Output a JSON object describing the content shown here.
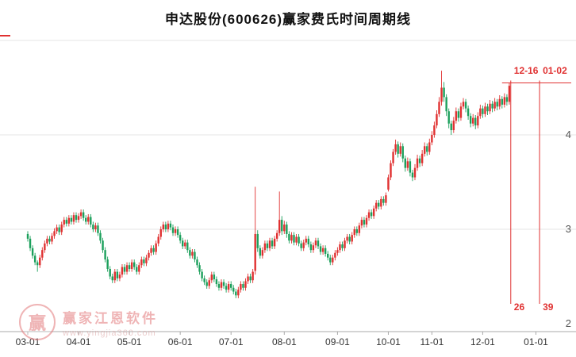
{
  "title": "申达股份(600626)赢家费氏时间周期线",
  "watermark": {
    "logo_char": "赢",
    "brand": "赢家江恩软件",
    "url": "www.yingjia360.com"
  },
  "colors": {
    "up": "#e03131",
    "down": "#1ca05c",
    "marker": "#e03131",
    "grid": "#e6e6e6",
    "axis": "#aaaaaa",
    "x_tick_text": "#333333",
    "y_tick_text": "#555555"
  },
  "x_axis": {
    "ticks": [
      {
        "label": "03-01",
        "i": 0
      },
      {
        "label": "04-01",
        "i": 21
      },
      {
        "label": "05-01",
        "i": 42
      },
      {
        "label": "06-01",
        "i": 63
      },
      {
        "label": "07-01",
        "i": 84
      },
      {
        "label": "08-01",
        "i": 106
      },
      {
        "label": "09-01",
        "i": 128
      },
      {
        "label": "10-01",
        "i": 149
      },
      {
        "label": "11-01",
        "i": 167
      },
      {
        "label": "12-01",
        "i": 188
      },
      {
        "label": "01-01",
        "i": 210
      }
    ]
  },
  "y_axis": {
    "labels": [
      {
        "price": 4,
        "text": "4"
      },
      {
        "price": 3,
        "text": "3"
      },
      {
        "price": 2,
        "text": "2"
      }
    ],
    "gridline_prices": [
      5,
      4,
      3
    ]
  },
  "markers": {
    "hline": {
      "price": 4.55,
      "start_index": 196
    },
    "vlines": [
      {
        "index": 199.6,
        "top_label": "12-16",
        "bottom_label": "26"
      },
      {
        "index": 211.5,
        "top_label": "01-02",
        "bottom_label": "39"
      }
    ],
    "left_dash": {
      "y": 45,
      "width": 13
    }
  },
  "chart_data": {
    "type": "candlestick",
    "title": "申达股份(600626)赢家费氏时间周期线",
    "symbol": "申达股份",
    "code": "600626",
    "ylim": [
      2,
      5
    ],
    "x_range_dates": [
      "03-01",
      "01-01"
    ],
    "ohlc_format": [
      "open",
      "high",
      "low",
      "close"
    ],
    "ohlc": [
      [
        2.95,
        2.98,
        2.87,
        2.9
      ],
      [
        2.9,
        2.93,
        2.77,
        2.8
      ],
      [
        2.8,
        2.83,
        2.69,
        2.72
      ],
      [
        2.72,
        2.75,
        2.62,
        2.65
      ],
      [
        2.65,
        2.67,
        2.55,
        2.62
      ],
      [
        2.62,
        2.73,
        2.59,
        2.7
      ],
      [
        2.7,
        2.81,
        2.67,
        2.78
      ],
      [
        2.78,
        2.88,
        2.75,
        2.85
      ],
      [
        2.85,
        2.93,
        2.82,
        2.9
      ],
      [
        2.9,
        2.93,
        2.84,
        2.87
      ],
      [
        2.87,
        2.96,
        2.84,
        2.93
      ],
      [
        2.93,
        3.01,
        2.9,
        2.98
      ],
      [
        2.98,
        3.05,
        2.95,
        3.02
      ],
      [
        3.02,
        3.05,
        2.94,
        2.97
      ],
      [
        2.97,
        3.08,
        2.94,
        3.05
      ],
      [
        3.05,
        3.13,
        3.02,
        3.1
      ],
      [
        3.1,
        3.13,
        3.03,
        3.06
      ],
      [
        3.06,
        3.15,
        3.03,
        3.12
      ],
      [
        3.12,
        3.15,
        3.05,
        3.08
      ],
      [
        3.08,
        3.18,
        3.05,
        3.15
      ],
      [
        3.15,
        3.18,
        3.07,
        3.1
      ],
      [
        3.1,
        3.17,
        3.07,
        3.14
      ],
      [
        3.14,
        3.21,
        3.11,
        3.18
      ],
      [
        3.18,
        3.21,
        3.09,
        3.12
      ],
      [
        3.12,
        3.15,
        3.05,
        3.08
      ],
      [
        3.08,
        3.16,
        3.05,
        3.13
      ],
      [
        3.13,
        3.16,
        3.02,
        3.05
      ],
      [
        3.05,
        3.08,
        2.97,
        3.0
      ],
      [
        3.0,
        3.07,
        2.97,
        3.04
      ],
      [
        3.04,
        3.07,
        2.93,
        2.96
      ],
      [
        2.96,
        2.99,
        2.85,
        2.88
      ],
      [
        2.88,
        2.91,
        2.75,
        2.78
      ],
      [
        2.78,
        2.81,
        2.65,
        2.68
      ],
      [
        2.68,
        2.71,
        2.55,
        2.58
      ],
      [
        2.58,
        2.61,
        2.47,
        2.5
      ],
      [
        2.5,
        2.53,
        2.43,
        2.46
      ],
      [
        2.46,
        2.58,
        2.43,
        2.55
      ],
      [
        2.55,
        2.58,
        2.45,
        2.48
      ],
      [
        2.48,
        2.55,
        2.45,
        2.52
      ],
      [
        2.52,
        2.63,
        2.49,
        2.6
      ],
      [
        2.6,
        2.63,
        2.52,
        2.55
      ],
      [
        2.55,
        2.65,
        2.52,
        2.62
      ],
      [
        2.62,
        2.65,
        2.55,
        2.58
      ],
      [
        2.58,
        2.68,
        2.55,
        2.65
      ],
      [
        2.65,
        2.68,
        2.57,
        2.6
      ],
      [
        2.6,
        2.63,
        2.52,
        2.55
      ],
      [
        2.55,
        2.65,
        2.52,
        2.62
      ],
      [
        2.62,
        2.71,
        2.59,
        2.68
      ],
      [
        2.68,
        2.71,
        2.61,
        2.64
      ],
      [
        2.64,
        2.73,
        2.61,
        2.7
      ],
      [
        2.7,
        2.78,
        2.67,
        2.75
      ],
      [
        2.75,
        2.83,
        2.72,
        2.8
      ],
      [
        2.8,
        2.83,
        2.73,
        2.76
      ],
      [
        2.76,
        2.88,
        2.73,
        2.85
      ],
      [
        2.85,
        2.95,
        2.82,
        2.92
      ],
      [
        2.92,
        3.03,
        2.89,
        3.0
      ],
      [
        3.0,
        3.08,
        2.97,
        3.05
      ],
      [
        3.05,
        3.08,
        2.97,
        3.0
      ],
      [
        3.0,
        3.09,
        2.97,
        3.06
      ],
      [
        3.06,
        3.09,
        2.99,
        3.02
      ],
      [
        3.02,
        3.05,
        2.93,
        2.96
      ],
      [
        2.96,
        3.03,
        2.93,
        3.0
      ],
      [
        3.0,
        3.03,
        2.91,
        2.94
      ],
      [
        2.94,
        2.97,
        2.85,
        2.88
      ],
      [
        2.88,
        2.91,
        2.79,
        2.82
      ],
      [
        2.82,
        2.89,
        2.79,
        2.86
      ],
      [
        2.86,
        2.89,
        2.75,
        2.78
      ],
      [
        2.78,
        2.81,
        2.69,
        2.72
      ],
      [
        2.72,
        2.79,
        2.69,
        2.76
      ],
      [
        2.76,
        2.79,
        2.65,
        2.68
      ],
      [
        2.68,
        2.71,
        2.59,
        2.62
      ],
      [
        2.62,
        2.65,
        2.52,
        2.55
      ],
      [
        2.55,
        2.58,
        2.45,
        2.48
      ],
      [
        2.48,
        2.51,
        2.41,
        2.44
      ],
      [
        2.44,
        2.47,
        2.37,
        2.4
      ],
      [
        2.4,
        2.49,
        2.37,
        2.46
      ],
      [
        2.46,
        2.55,
        2.43,
        2.52
      ],
      [
        2.52,
        2.55,
        2.44,
        2.47
      ],
      [
        2.47,
        2.5,
        2.39,
        2.42
      ],
      [
        2.42,
        2.45,
        2.35,
        2.38
      ],
      [
        2.38,
        2.47,
        2.35,
        2.44
      ],
      [
        2.44,
        2.47,
        2.37,
        2.4
      ],
      [
        2.4,
        2.43,
        2.33,
        2.36
      ],
      [
        2.36,
        2.45,
        2.33,
        2.42
      ],
      [
        2.42,
        2.45,
        2.35,
        2.38
      ],
      [
        2.38,
        2.41,
        2.31,
        2.34
      ],
      [
        2.34,
        2.37,
        2.27,
        2.3
      ],
      [
        2.3,
        2.39,
        2.27,
        2.36
      ],
      [
        2.36,
        2.45,
        2.33,
        2.42
      ],
      [
        2.42,
        2.45,
        2.35,
        2.38
      ],
      [
        2.38,
        2.48,
        2.35,
        2.45
      ],
      [
        2.45,
        2.53,
        2.42,
        2.5
      ],
      [
        2.5,
        2.53,
        2.43,
        2.46
      ],
      [
        2.46,
        2.58,
        2.43,
        2.55
      ],
      [
        2.56,
        3.45,
        2.52,
        2.95
      ],
      [
        2.95,
        2.99,
        2.76,
        2.8
      ],
      [
        2.8,
        2.83,
        2.69,
        2.72
      ],
      [
        2.72,
        2.81,
        2.69,
        2.78
      ],
      [
        2.78,
        2.88,
        2.75,
        2.85
      ],
      [
        2.85,
        2.88,
        2.77,
        2.8
      ],
      [
        2.8,
        2.91,
        2.77,
        2.88
      ],
      [
        2.88,
        2.91,
        2.79,
        2.82
      ],
      [
        2.82,
        2.93,
        2.79,
        2.9
      ],
      [
        2.9,
        2.99,
        2.87,
        2.96
      ],
      [
        2.96,
        3.4,
        2.93,
        3.1
      ],
      [
        3.1,
        3.14,
        2.94,
        2.98
      ],
      [
        2.98,
        3.09,
        2.95,
        3.05
      ],
      [
        3.05,
        3.08,
        2.91,
        2.95
      ],
      [
        2.95,
        2.98,
        2.85,
        2.88
      ],
      [
        2.88,
        2.97,
        2.85,
        2.94
      ],
      [
        2.94,
        2.97,
        2.83,
        2.86
      ],
      [
        2.86,
        2.95,
        2.83,
        2.92
      ],
      [
        2.92,
        2.95,
        2.82,
        2.85
      ],
      [
        2.85,
        2.88,
        2.77,
        2.8
      ],
      [
        2.8,
        2.89,
        2.77,
        2.86
      ],
      [
        2.86,
        2.93,
        2.83,
        2.9
      ],
      [
        2.9,
        2.93,
        2.81,
        2.84
      ],
      [
        2.84,
        2.87,
        2.75,
        2.78
      ],
      [
        2.78,
        2.86,
        2.75,
        2.83
      ],
      [
        2.83,
        2.91,
        2.8,
        2.88
      ],
      [
        2.88,
        2.91,
        2.79,
        2.82
      ],
      [
        2.82,
        2.85,
        2.73,
        2.76
      ],
      [
        2.76,
        2.83,
        2.73,
        2.8
      ],
      [
        2.8,
        2.83,
        2.71,
        2.74
      ],
      [
        2.74,
        2.77,
        2.67,
        2.7
      ],
      [
        2.7,
        2.73,
        2.62,
        2.65
      ],
      [
        2.65,
        2.73,
        2.62,
        2.7
      ],
      [
        2.7,
        2.78,
        2.67,
        2.75
      ],
      [
        2.75,
        2.81,
        2.72,
        2.78
      ],
      [
        2.78,
        2.87,
        2.75,
        2.84
      ],
      [
        2.84,
        2.87,
        2.77,
        2.8
      ],
      [
        2.8,
        2.91,
        2.77,
        2.88
      ],
      [
        2.88,
        2.95,
        2.85,
        2.92
      ],
      [
        2.92,
        2.95,
        2.84,
        2.87
      ],
      [
        2.87,
        2.97,
        2.84,
        2.94
      ],
      [
        2.94,
        3.03,
        2.91,
        3.0
      ],
      [
        3.0,
        3.03,
        2.93,
        2.96
      ],
      [
        2.96,
        3.07,
        2.93,
        3.04
      ],
      [
        3.04,
        3.13,
        3.01,
        3.1
      ],
      [
        3.1,
        3.13,
        3.02,
        3.05
      ],
      [
        3.05,
        3.15,
        3.02,
        3.12
      ],
      [
        3.12,
        3.21,
        3.09,
        3.18
      ],
      [
        3.18,
        3.21,
        3.11,
        3.14
      ],
      [
        3.14,
        3.25,
        3.11,
        3.22
      ],
      [
        3.22,
        3.31,
        3.19,
        3.28
      ],
      [
        3.28,
        3.31,
        3.21,
        3.24
      ],
      [
        3.24,
        3.35,
        3.21,
        3.32
      ],
      [
        3.32,
        3.35,
        3.25,
        3.28
      ],
      [
        3.28,
        3.39,
        3.25,
        3.36
      ],
      [
        3.42,
        3.58,
        3.4,
        3.55
      ],
      [
        3.55,
        3.73,
        3.52,
        3.7
      ],
      [
        3.7,
        3.85,
        3.67,
        3.82
      ],
      [
        3.82,
        3.95,
        3.79,
        3.9
      ],
      [
        3.9,
        3.93,
        3.76,
        3.8
      ],
      [
        3.8,
        3.92,
        3.77,
        3.88
      ],
      [
        3.88,
        3.91,
        3.71,
        3.75
      ],
      [
        3.75,
        3.78,
        3.61,
        3.65
      ],
      [
        3.65,
        3.76,
        3.62,
        3.72
      ],
      [
        3.72,
        3.75,
        3.56,
        3.6
      ],
      [
        3.6,
        3.63,
        3.51,
        3.55
      ],
      [
        3.55,
        3.69,
        3.52,
        3.65
      ],
      [
        3.65,
        3.79,
        3.62,
        3.75
      ],
      [
        3.75,
        3.78,
        3.66,
        3.7
      ],
      [
        3.7,
        3.84,
        3.67,
        3.8
      ],
      [
        3.8,
        3.92,
        3.77,
        3.88
      ],
      [
        3.88,
        3.91,
        3.78,
        3.82
      ],
      [
        3.82,
        3.96,
        3.79,
        3.92
      ],
      [
        3.92,
        4.04,
        3.89,
        4.0
      ],
      [
        4.0,
        4.14,
        3.97,
        4.1
      ],
      [
        4.1,
        4.26,
        4.07,
        4.22
      ],
      [
        4.22,
        4.4,
        4.19,
        4.35
      ],
      [
        4.35,
        4.68,
        4.31,
        4.5
      ],
      [
        4.5,
        4.56,
        4.35,
        4.4
      ],
      [
        4.4,
        4.43,
        4.2,
        4.25
      ],
      [
        4.25,
        4.28,
        4.07,
        4.12
      ],
      [
        4.12,
        4.15,
        4.0,
        4.05
      ],
      [
        4.05,
        4.19,
        4.02,
        4.15
      ],
      [
        4.15,
        4.29,
        4.12,
        4.25
      ],
      [
        4.25,
        4.28,
        4.14,
        4.18
      ],
      [
        4.18,
        4.34,
        4.15,
        4.3
      ],
      [
        4.3,
        4.39,
        4.27,
        4.35
      ],
      [
        4.35,
        4.38,
        4.24,
        4.28
      ],
      [
        4.28,
        4.31,
        4.16,
        4.2
      ],
      [
        4.2,
        4.23,
        4.08,
        4.12
      ],
      [
        4.12,
        4.22,
        4.09,
        4.18
      ],
      [
        4.18,
        4.21,
        4.06,
        4.1
      ],
      [
        4.1,
        4.24,
        4.07,
        4.2
      ],
      [
        4.2,
        4.32,
        4.17,
        4.28
      ],
      [
        4.28,
        4.31,
        4.18,
        4.22
      ],
      [
        4.22,
        4.34,
        4.19,
        4.3
      ],
      [
        4.3,
        4.33,
        4.21,
        4.25
      ],
      [
        4.25,
        4.37,
        4.22,
        4.33
      ],
      [
        4.33,
        4.36,
        4.24,
        4.28
      ],
      [
        4.28,
        4.39,
        4.25,
        4.35
      ],
      [
        4.35,
        4.38,
        4.26,
        4.3
      ],
      [
        4.3,
        4.42,
        4.27,
        4.38
      ],
      [
        4.38,
        4.41,
        4.28,
        4.32
      ],
      [
        4.32,
        4.44,
        4.29,
        4.4
      ],
      [
        4.4,
        4.43,
        4.31,
        4.35
      ],
      [
        4.35,
        4.55,
        4.32,
        4.52
      ]
    ]
  }
}
